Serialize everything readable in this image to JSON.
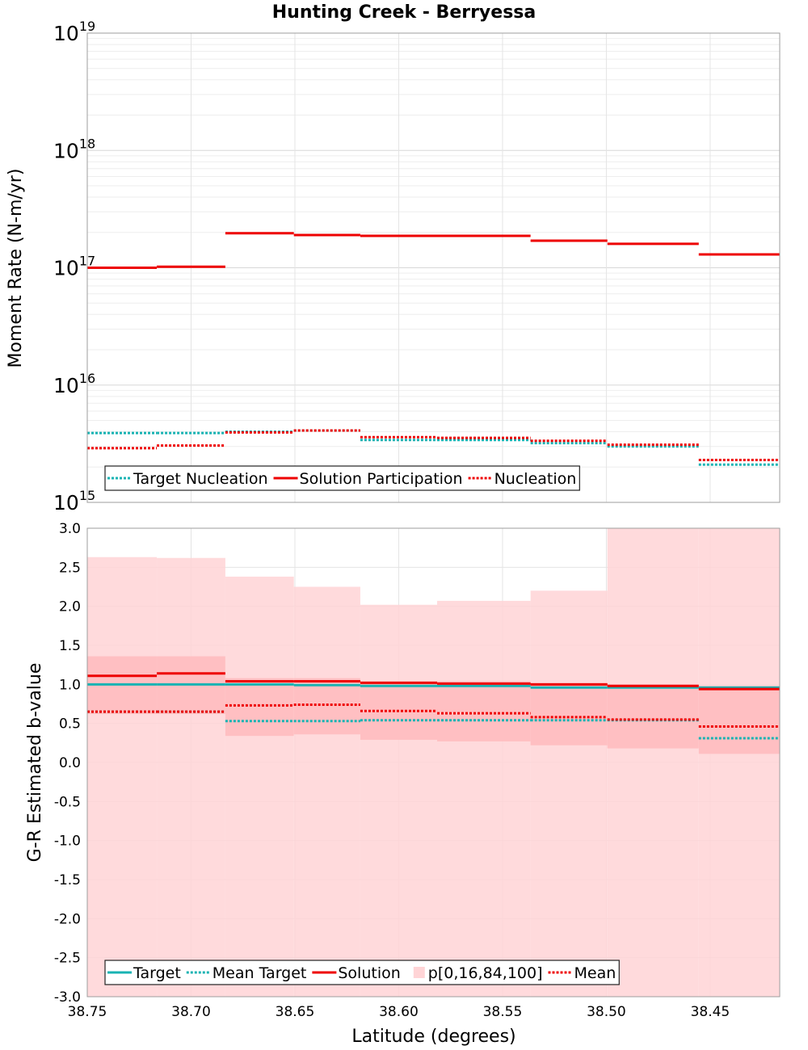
{
  "chart_data": {
    "title": "Hunting Creek - Berryessa",
    "xlabel": "Latitude (degrees)",
    "x_ticks": [
      "38.75",
      "38.70",
      "38.65",
      "38.60",
      "38.55",
      "38.50",
      "38.45"
    ],
    "x_tick_values": [
      38.75,
      38.7,
      38.65,
      38.6,
      38.55,
      38.5,
      38.45
    ],
    "xlim": [
      38.75,
      38.4165
    ],
    "bins": [
      38.75,
      38.7165,
      38.6835,
      38.6505,
      38.6185,
      38.5815,
      38.5365,
      38.4995,
      38.4555,
      38.4165
    ],
    "panels": [
      {
        "type": "line",
        "scale": "log",
        "ylabel": "Moment Rate (N-m/yr)",
        "ylim": [
          1000000000000000.0,
          1e+19
        ],
        "y_ticks": [
          {
            "base": "10",
            "exp": "15",
            "value": 1000000000000000.0
          },
          {
            "base": "10",
            "exp": "16",
            "value": 1e+16
          },
          {
            "base": "10",
            "exp": "17",
            "value": 1e+17
          },
          {
            "base": "10",
            "exp": "18",
            "value": 1e+18
          },
          {
            "base": "10",
            "exp": "19",
            "value": 1e+19
          }
        ],
        "series": [
          {
            "name": "Target Nucleation",
            "style": "dotted",
            "color": "#19b3b3",
            "values": [
              3900000000000000.0,
              3900000000000000.0,
              4000000000000000.0,
              4100000000000000.0,
              3400000000000000.0,
              3400000000000000.0,
              3200000000000000.0,
              3000000000000000.0,
              2100000000000000.0
            ]
          },
          {
            "name": "Solution Participation",
            "style": "solid",
            "color": "#ee0000",
            "values": [
              1e+17,
              1.02e+17,
              1.97e+17,
              1.9e+17,
              1.87e+17,
              1.87e+17,
              1.7e+17,
              1.6e+17,
              1.3e+17
            ]
          },
          {
            "name": "Nucleation",
            "style": "dotted",
            "color": "#ee0000",
            "values": [
              2900000000000000.0,
              3050000000000000.0,
              3950000000000000.0,
              4100000000000000.0,
              3600000000000000.0,
              3550000000000000.0,
              3350000000000000.0,
              3100000000000000.0,
              2300000000000000.0
            ]
          }
        ],
        "legend": [
          {
            "label": "Target Nucleation",
            "style": "dotted",
            "color": "#19b3b3"
          },
          {
            "label": "Solution Participation",
            "style": "solid",
            "color": "#ee0000"
          },
          {
            "label": "Nucleation",
            "style": "dotted",
            "color": "#ee0000"
          }
        ],
        "legend_location": "bottom-left"
      },
      {
        "type": "line",
        "scale": "linear",
        "ylabel": "G-R Estimated b-value",
        "ylim": [
          -3.0,
          3.0
        ],
        "y_ticks": [
          "-3.0",
          "-2.5",
          "-2.0",
          "-1.5",
          "-1.0",
          "-0.5",
          "0.0",
          "0.5",
          "1.0",
          "1.5",
          "2.0",
          "2.5",
          "3.0"
        ],
        "y_tick_values": [
          -3.0,
          -2.5,
          -2.0,
          -1.5,
          -1.0,
          -0.5,
          0.0,
          0.5,
          1.0,
          1.5,
          2.0,
          2.5,
          3.0
        ],
        "bands": {
          "name": "p[0,16,84,100]",
          "color": "#ffd4d6",
          "inner_color": "#ffbfc2",
          "p0": [
            -3.0,
            -3.0,
            -3.0,
            -3.0,
            -3.0,
            -3.0,
            -3.0,
            -3.0,
            -3.0
          ],
          "p16": [
            0.62,
            0.62,
            0.34,
            0.36,
            0.29,
            0.27,
            0.22,
            0.18,
            0.11
          ],
          "p84": [
            1.36,
            1.36,
            1.08,
            1.08,
            1.04,
            1.04,
            1.02,
            1.0,
            0.98
          ],
          "p100": [
            2.63,
            2.62,
            2.38,
            2.25,
            2.02,
            2.07,
            2.2,
            3.0,
            3.0
          ]
        },
        "series": [
          {
            "name": "Target",
            "style": "solid",
            "color": "#19b3b3",
            "values": [
              1.0,
              1.0,
              1.0,
              0.99,
              0.98,
              0.98,
              0.96,
              0.96,
              0.96
            ]
          },
          {
            "name": "Mean Target",
            "style": "dotted",
            "color": "#19b3b3",
            "values": [
              0.65,
              0.65,
              0.53,
              0.53,
              0.54,
              0.54,
              0.54,
              0.54,
              0.31
            ]
          },
          {
            "name": "Solution",
            "style": "solid",
            "color": "#ee0000",
            "values": [
              1.11,
              1.14,
              1.04,
              1.04,
              1.02,
              1.01,
              1.0,
              0.98,
              0.94
            ]
          },
          {
            "name": "Mean",
            "style": "dotted",
            "color": "#ee0000",
            "values": [
              0.65,
              0.65,
              0.73,
              0.74,
              0.66,
              0.63,
              0.58,
              0.55,
              0.46
            ]
          }
        ],
        "legend": [
          {
            "label": "Target",
            "style": "solid",
            "color": "#19b3b3"
          },
          {
            "label": "Mean Target",
            "style": "dotted",
            "color": "#19b3b3"
          },
          {
            "label": "Solution",
            "style": "solid",
            "color": "#ee0000"
          },
          {
            "label": "p[0,16,84,100]",
            "style": "swatch",
            "color": "#ffd4d6"
          },
          {
            "label": "Mean",
            "style": "dotted",
            "color": "#ee0000"
          }
        ],
        "legend_location": "bottom-left"
      }
    ]
  }
}
